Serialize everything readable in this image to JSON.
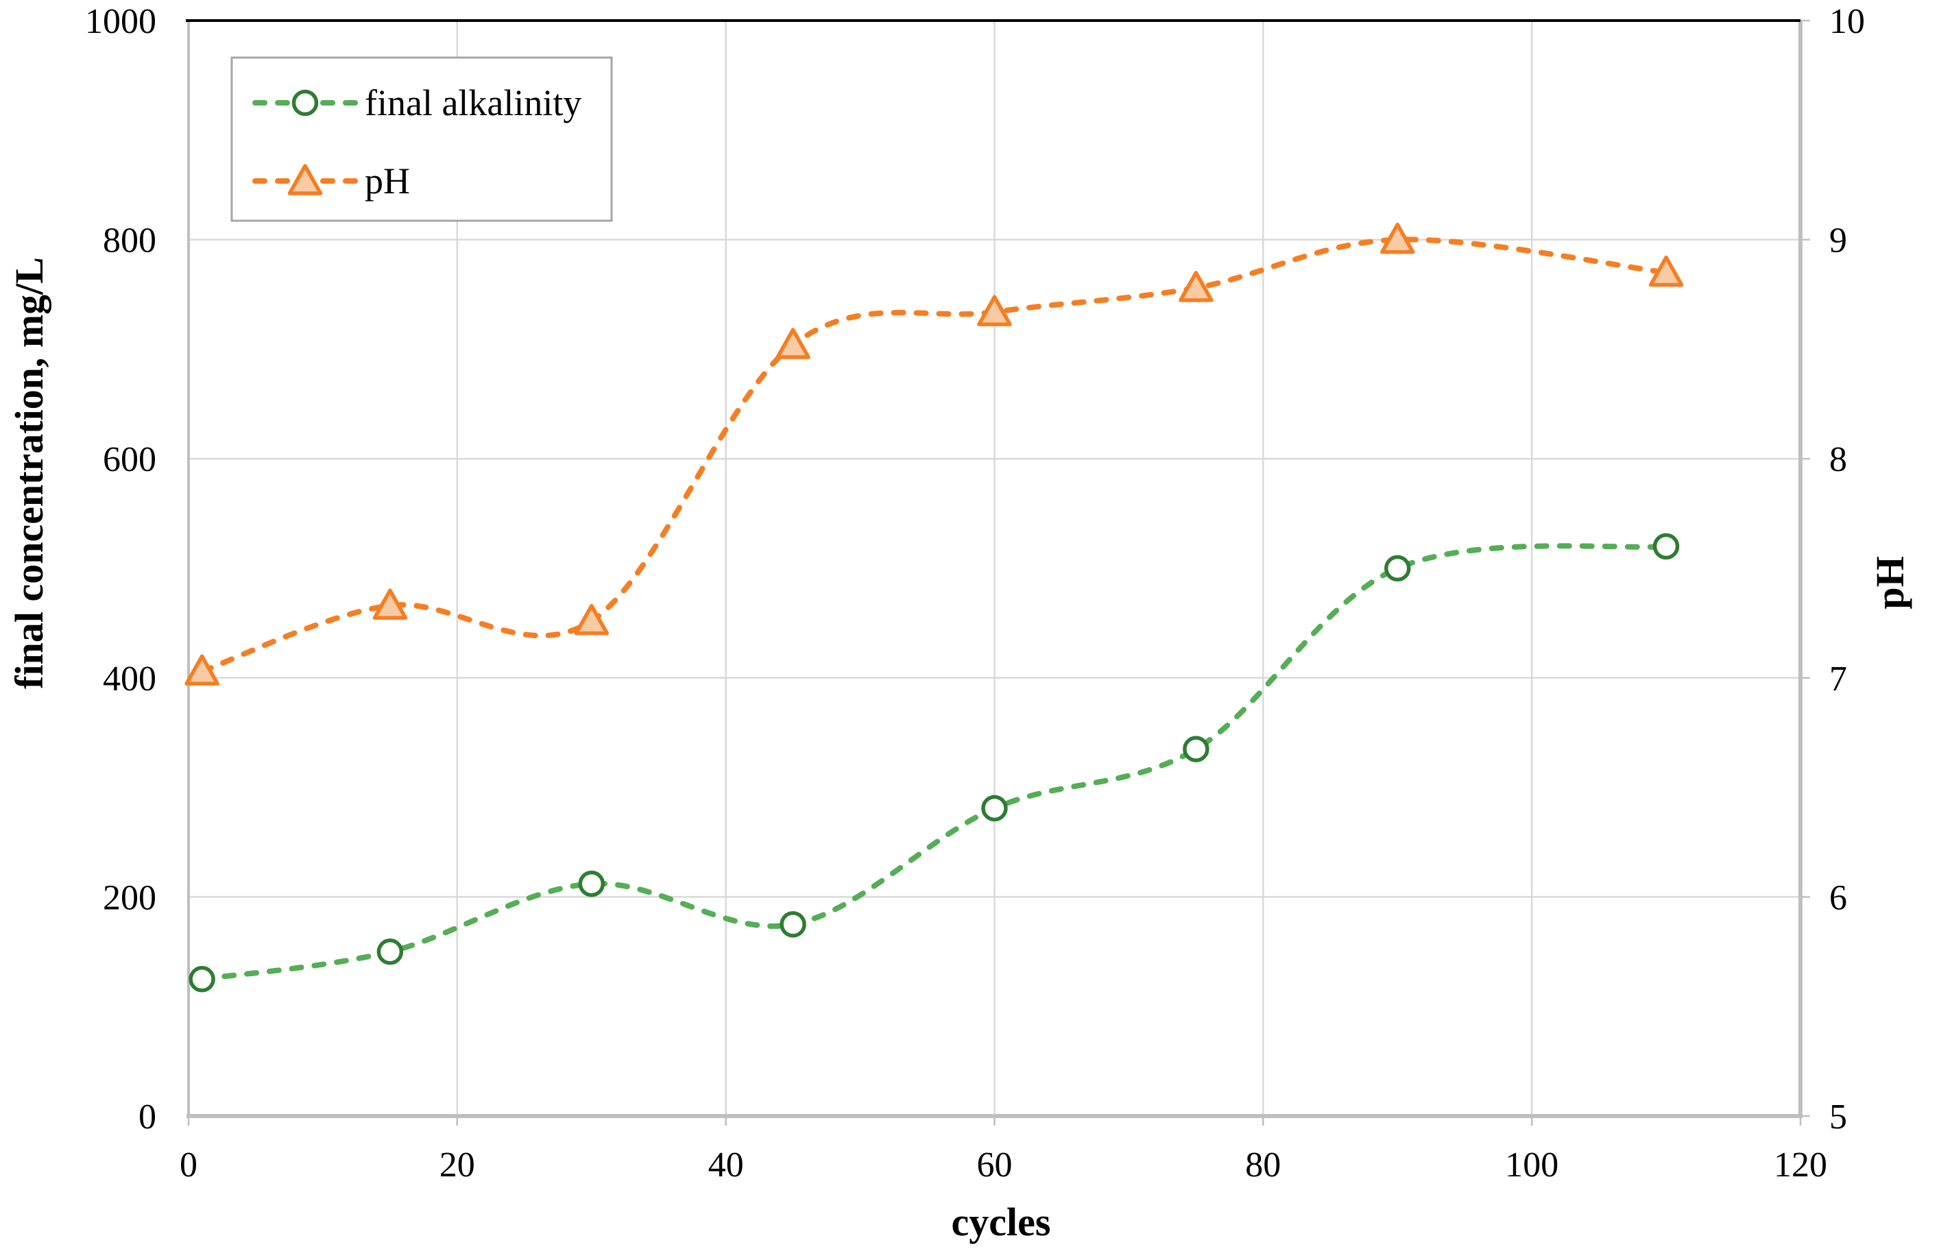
{
  "page": {
    "background": "#FFFFFF"
  },
  "chart_data": {
    "type": "line",
    "title": "",
    "xlabel": "cycles",
    "ylabel_left": "final concentration, mg/L",
    "ylabel_right": "pH",
    "x": [
      1,
      15,
      30,
      45,
      60,
      75,
      90,
      110
    ],
    "series": [
      {
        "name": "final alkalinity",
        "y_axis": "left",
        "values": [
          125,
          150,
          212,
          175,
          281,
          335,
          500,
          520
        ],
        "line_color": "#54AE54",
        "line_style": "dashed",
        "smoothed": true,
        "marker": "open-circle",
        "marker_color": "#2E7D32",
        "marker_fill": "#FFFFFF"
      },
      {
        "name": "pH",
        "y_axis": "right",
        "values": [
          7.03,
          7.33,
          7.26,
          8.52,
          8.67,
          8.78,
          9.0,
          8.85
        ],
        "line_color": "#F57E22",
        "line_style": "dashed",
        "smoothed": true,
        "marker": "triangle",
        "marker_color": "#F57E22",
        "marker_fill": "#F9CBA4"
      }
    ],
    "xlim": [
      0,
      120
    ],
    "xticks": [
      0,
      20,
      40,
      60,
      80,
      100,
      120
    ],
    "ylim_left": [
      0,
      1000
    ],
    "yticks_left": [
      0,
      200,
      400,
      600,
      800,
      1000
    ],
    "ylim_right": [
      5,
      10
    ],
    "yticks_right": [
      5,
      6,
      7,
      8,
      9,
      10
    ],
    "grid": true,
    "legend_position": "top-left"
  },
  "style": {
    "grid_color": "#D9D9D9",
    "axis_color": "#BFBFBF",
    "top_border_color": "#000000",
    "legend_border_color": "#A6A6A6",
    "text_color": "#000000"
  }
}
